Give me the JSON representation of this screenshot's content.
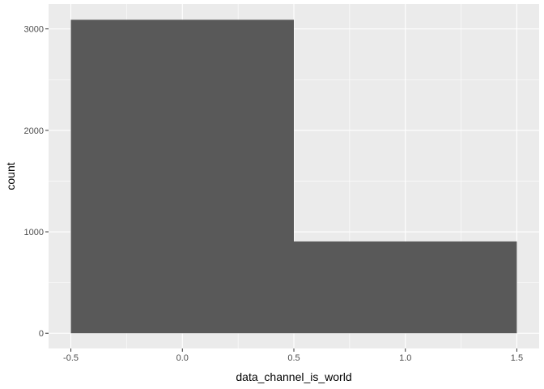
{
  "chart_data": {
    "type": "bar",
    "subtype": "histogram",
    "title": "",
    "xlabel": "data_channel_is_world",
    "ylabel": "count",
    "bins": [
      {
        "x_start": -0.5,
        "x_end": 0.5,
        "count": 3090
      },
      {
        "x_start": 0.5,
        "x_end": 1.5,
        "count": 905
      }
    ],
    "xlim": [
      -0.6,
      1.6
    ],
    "ylim": [
      -150,
      3245
    ],
    "x_ticks": [
      -0.5,
      0.0,
      0.5,
      1.0,
      1.5
    ],
    "x_tick_labels": [
      "-0.5",
      "0.0",
      "0.5",
      "1.0",
      "1.5"
    ],
    "y_ticks": [
      0,
      1000,
      2000,
      3000
    ],
    "y_tick_labels": [
      "0",
      "1000",
      "2000",
      "3000"
    ],
    "grid": true,
    "legend": "none",
    "colors": {
      "panel_background": "#ebebeb",
      "grid_major": "#ffffff",
      "bar_fill": "#595959",
      "tick_text": "#4d4d4d",
      "tick_mark": "#333333"
    }
  }
}
